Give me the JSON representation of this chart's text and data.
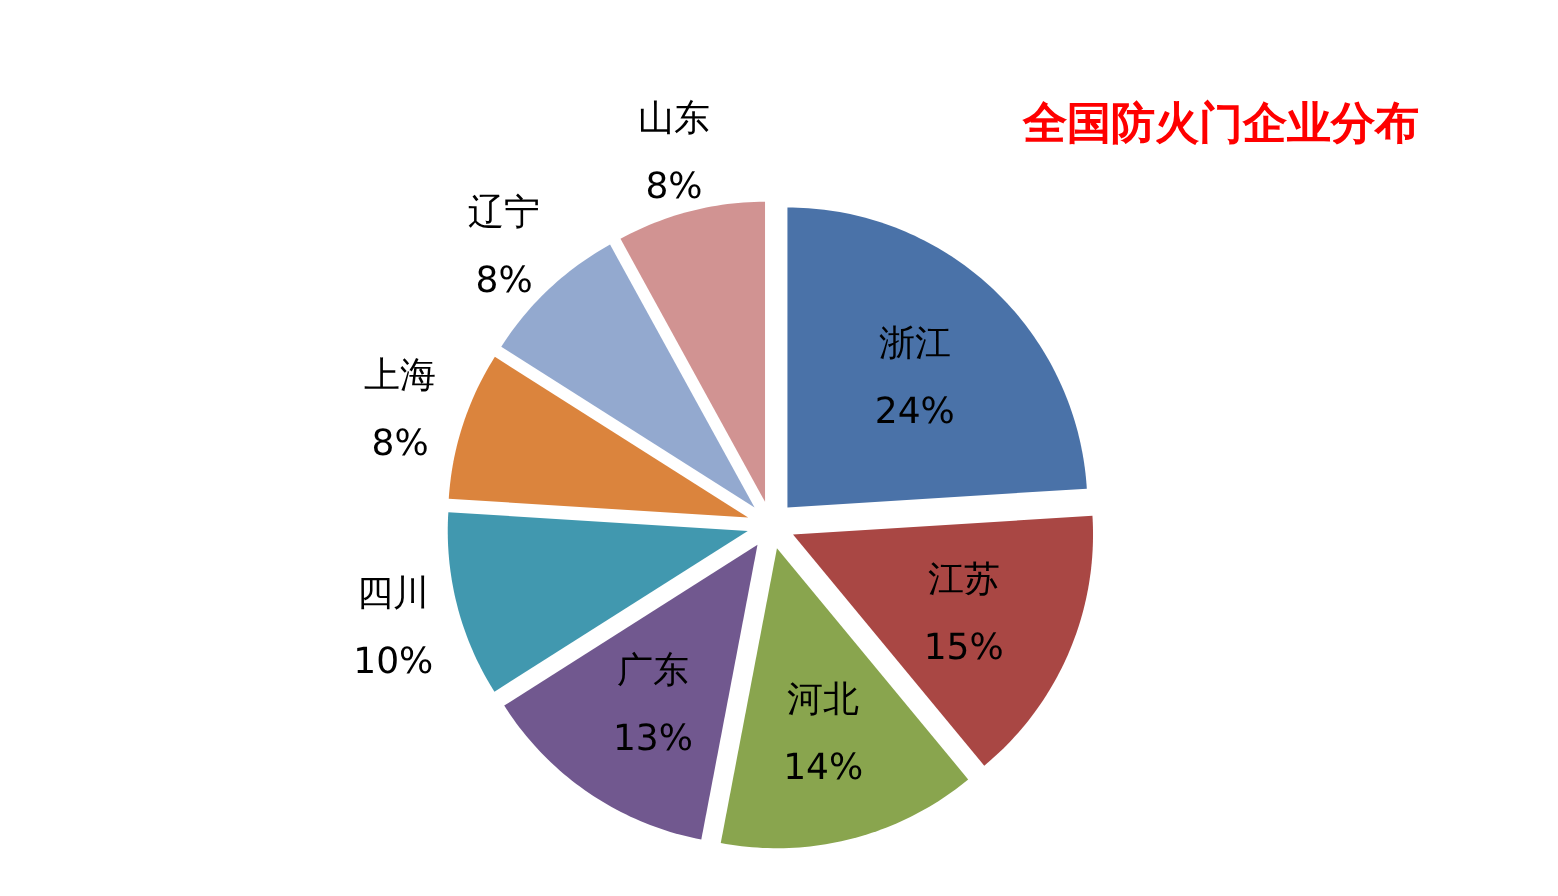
{
  "chart_data": {
    "type": "pie",
    "title": "全国防火门企业分布",
    "categories": [
      "浙江",
      "江苏",
      "河北",
      "广东",
      "四川",
      "上海",
      "辽宁",
      "山东"
    ],
    "values": [
      24,
      15,
      14,
      13,
      10,
      8,
      8,
      8
    ],
    "value_labels": [
      "24%",
      "15%",
      "14%",
      "13%",
      "10%",
      "8%",
      "8%",
      "8%"
    ],
    "colors": [
      "#4a72a8",
      "#a94744",
      "#89a54e",
      "#71588f",
      "#4198af",
      "#db843d",
      "#93a9cf",
      "#d19392"
    ],
    "legend": false
  }
}
